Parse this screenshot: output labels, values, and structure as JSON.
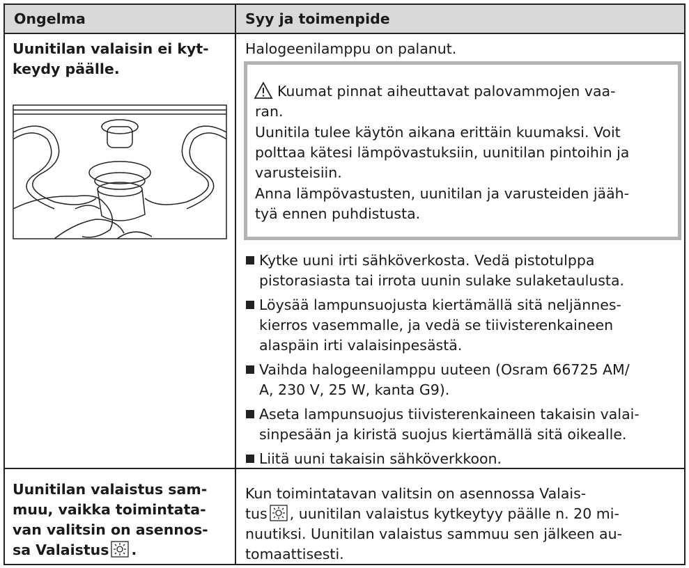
{
  "table": {
    "header": [
      "Ongelma",
      "Syy ja toimenpide"
    ],
    "rows": [
      {
        "problem": [
          "Uunitilan valaisin ei kyt-",
          "keydy päälle."
        ],
        "cause": [
          "Halogeenilamppu on palanut."
        ],
        "warning": [
          "Kuumat pinnat aiheuttavat palovammojen vaa-",
          "ran.",
          "Uunitila tulee käytön aikana erittäin kuumaksi. Voit",
          "polttaa kätesi lämpövastuksiin, uunitilan pintoihin ja",
          "varusteisiin.",
          "Anna lämpövastusten, uunitilan ja varusteiden jääh-",
          "tyä ennen puhdistusta."
        ],
        "steps": [
          [
            "Kytke uuni irti sähköverkosta. Vedä pistotulppa",
            "pistorasiasta tai irrota uunin sulake sulaketaulusta."
          ],
          [
            "Löysää lampunsuojusta kiertämällä sitä neljännes-",
            "kierros vasemmalle, ja vedä se tiivisterenkaineen",
            "alaspäin irti valaisinpesästä."
          ],
          [
            "Vaihda halogeenilamppu uuteen (Osram 66725 AM/",
            "A, 230 V, 25 W, kanta G9)."
          ],
          [
            "Aseta lampunsuojus tiivisterenkaineen takaisin valai-",
            "sinpesään ja kiristä suojus kiertämällä sitä oikealle."
          ],
          [
            "Liitä uuni takaisin sähköverkkoon."
          ]
        ]
      },
      {
        "problem": [
          "Uunitilan valaistus sam-",
          "muu, vaikka toimintata-",
          "van valitsin on asennos-",
          {
            "before": "sa Valaistus",
            "after": "."
          }
        ],
        "cause": [
          "Kun toimintatavan valitsin on asennossa Valais-",
          {
            "before": "tus",
            "after": ", uunitilan valaistus kytkeytyy päälle n. 20 mi-"
          },
          "nuutiksi. Uunitilan valaistus sammuu sen jälkeen au-",
          "tomaattisesti."
        ]
      }
    ]
  }
}
